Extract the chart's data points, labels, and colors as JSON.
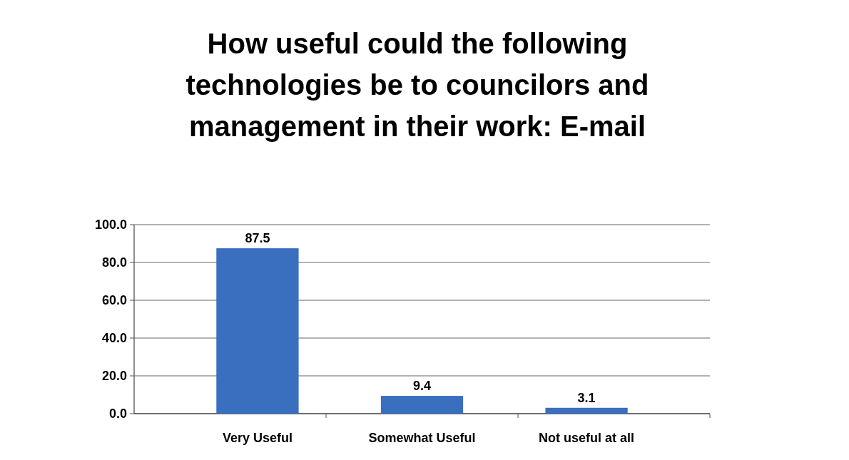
{
  "chart_data": {
    "type": "bar",
    "title": "How useful could the following technologies be to councilors and management in their work: E-mail",
    "categories": [
      "Very Useful",
      "Somewhat Useful",
      "Not useful at all"
    ],
    "values": [
      87.5,
      9.4,
      3.1
    ],
    "color": "#3a6fbf",
    "ylim": [
      0,
      100
    ],
    "yticks": [
      {
        "value": 0,
        "label": "0.0"
      },
      {
        "value": 20,
        "label": "20.0"
      },
      {
        "value": 40,
        "label": "40.0"
      },
      {
        "value": 60,
        "label": "60.0"
      },
      {
        "value": 80,
        "label": "80.0"
      },
      {
        "value": 100,
        "label": "100.0"
      }
    ],
    "grid": "y",
    "data_labels": true
  }
}
